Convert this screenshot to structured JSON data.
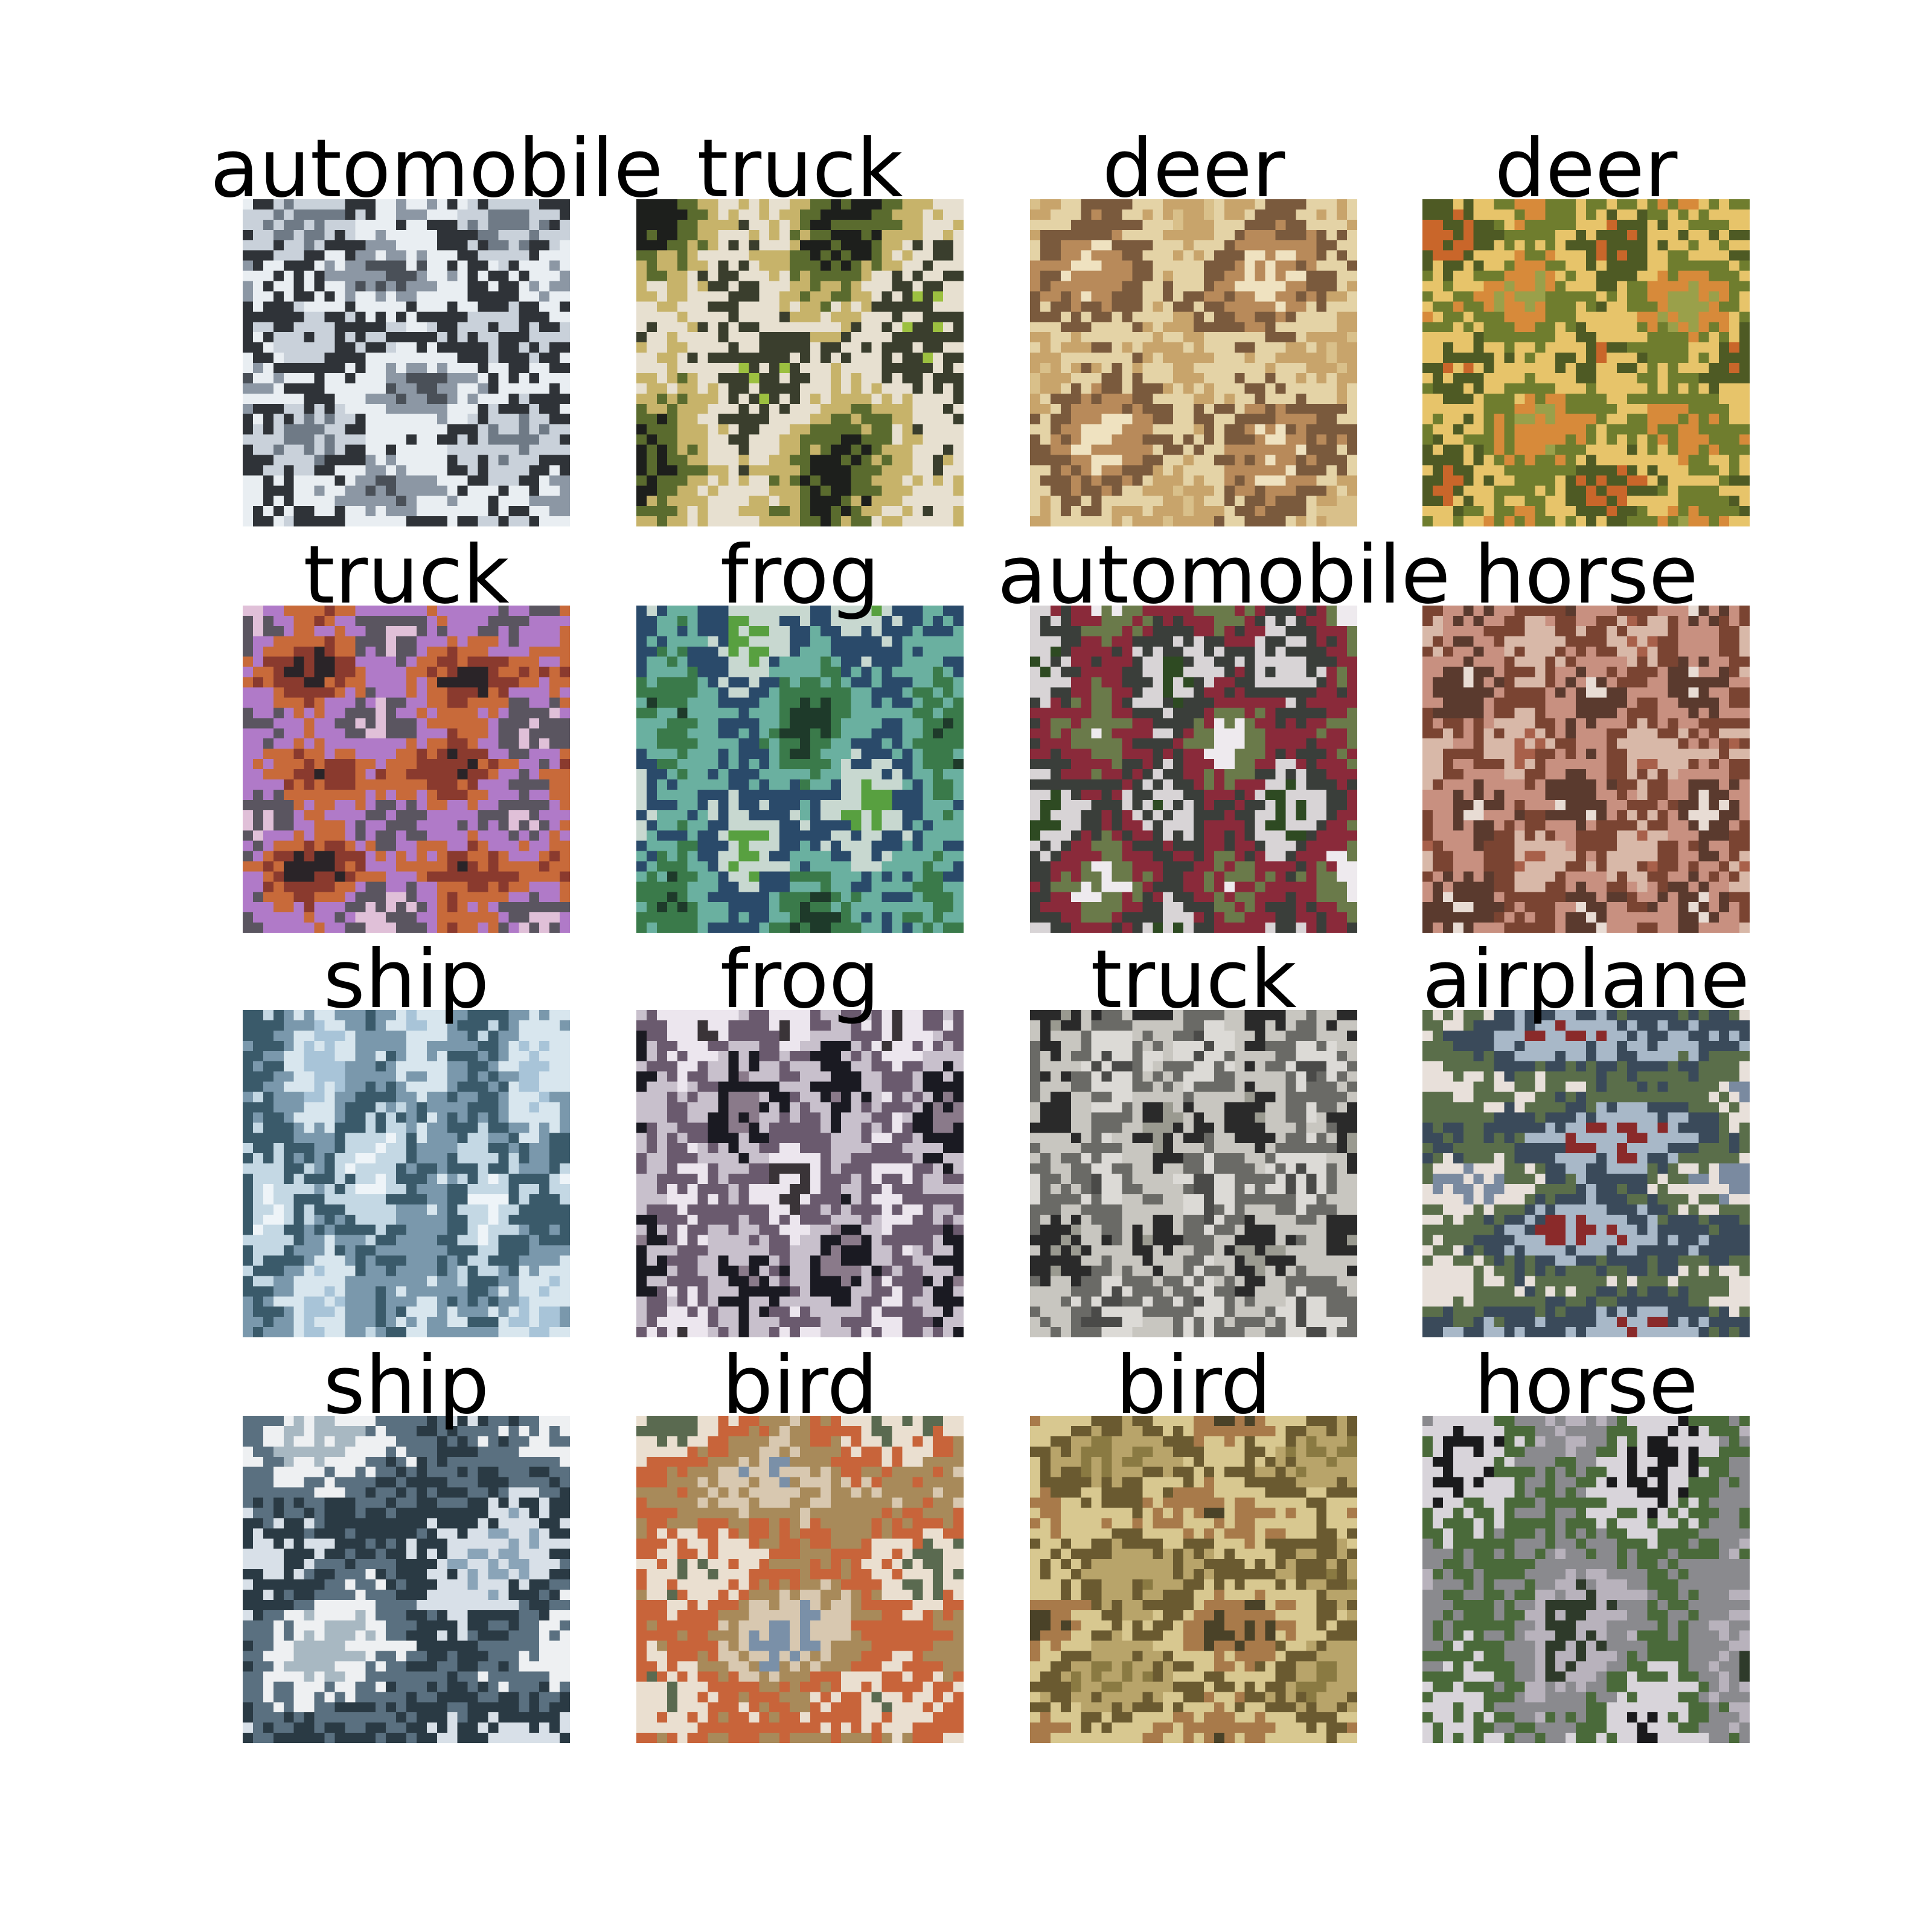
{
  "grid": {
    "samples": [
      {
        "label": "automobile",
        "palette": [
          "#6f7a86",
          "#c9d1da",
          "#2f3338",
          "#e9eef2",
          "#8c97a4",
          "#4a5058"
        ]
      },
      {
        "label": "truck",
        "palette": [
          "#1d1f1c",
          "#5a6b2e",
          "#c7b36a",
          "#e7e0d0",
          "#3a3e2d",
          "#9cc040"
        ]
      },
      {
        "label": "deer",
        "palette": [
          "#d9c08a",
          "#c8a46b",
          "#e4d3a6",
          "#7a5a3d",
          "#b88a5a",
          "#efe2c0"
        ]
      },
      {
        "label": "deer",
        "palette": [
          "#9aa04a",
          "#d78a3a",
          "#6f7d2e",
          "#e7c46a",
          "#4e5a24",
          "#c9662a"
        ]
      },
      {
        "label": "truck",
        "palette": [
          "#2a2428",
          "#8a3a2e",
          "#c86a3a",
          "#b07ac8",
          "#5a5560",
          "#e0c0d8"
        ]
      },
      {
        "label": "frog",
        "palette": [
          "#1e3a2a",
          "#3a7a4a",
          "#6ab0a0",
          "#2a4a6a",
          "#c8d8d0",
          "#58a040"
        ]
      },
      {
        "label": "automobile",
        "palette": [
          "#2e4a22",
          "#d8d4d6",
          "#3a3e3a",
          "#8a2a3a",
          "#6a7a4a",
          "#eeeaee"
        ]
      },
      {
        "label": "horse",
        "palette": [
          "#a8604a",
          "#d8b8a8",
          "#7a4432",
          "#c89080",
          "#5a3a2e",
          "#e8dcd4"
        ]
      },
      {
        "label": "ship",
        "palette": [
          "#a8c4d8",
          "#d8e6ee",
          "#7a98ac",
          "#3a5a6a",
          "#c4d8e4",
          "#eef4f8"
        ]
      },
      {
        "label": "frog",
        "palette": [
          "#3a3438",
          "#ece6ee",
          "#6a5a6e",
          "#c8c0cc",
          "#1a1a22",
          "#8a7a8a"
        ]
      },
      {
        "label": "truck",
        "palette": [
          "#9a9a90",
          "#2a2a2a",
          "#c8c6c0",
          "#6a6a66",
          "#dcdad6",
          "#4a4a48"
        ]
      },
      {
        "label": "airplane",
        "palette": [
          "#7a8aa0",
          "#e8e0da",
          "#5a6e4a",
          "#3a4a5a",
          "#a8b8c8",
          "#8a2a2a"
        ]
      },
      {
        "label": "ship",
        "palette": [
          "#8aa4b8",
          "#d8e0e8",
          "#2a3a44",
          "#5a7080",
          "#eef0f2",
          "#a8b8c2"
        ]
      },
      {
        "label": "bird",
        "palette": [
          "#7a90a8",
          "#d8c8b0",
          "#a88a5a",
          "#c8643a",
          "#eadfd0",
          "#5a6a50"
        ]
      },
      {
        "label": "bird",
        "palette": [
          "#8a7a42",
          "#b8a46a",
          "#6a5a30",
          "#d8c890",
          "#a87a4a",
          "#4a4228"
        ]
      },
      {
        "label": "horse",
        "palette": [
          "#1a1a1c",
          "#d8d4da",
          "#4a6a3a",
          "#8a8a8e",
          "#b8b2bc",
          "#2e3a2a"
        ]
      }
    ]
  }
}
